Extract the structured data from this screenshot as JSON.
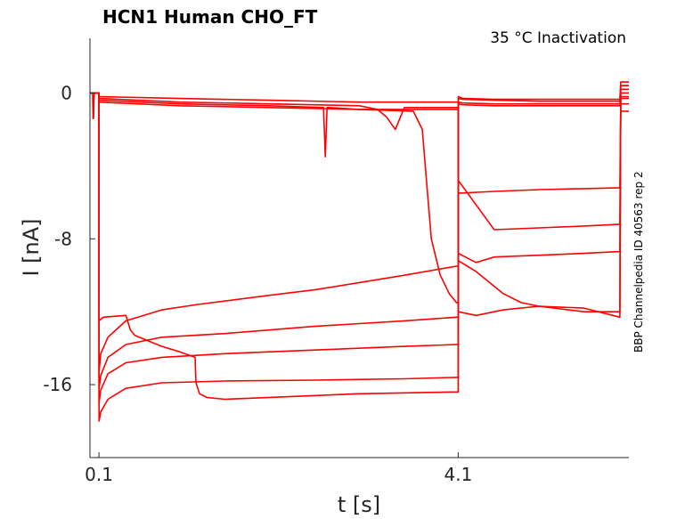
{
  "chart_data": {
    "type": "line",
    "title": "HCN1  Human  CHO_FT",
    "subtitle": "35 °C  Inactivation",
    "side_label": "BBP Channelpedia ID 40563 rep 2",
    "xlabel": "t [s]",
    "ylabel": "I [nA]",
    "xlim": [
      0.0,
      6.0
    ],
    "ylim": [
      -20.0,
      3.0
    ],
    "x_ticks": [
      {
        "value": 0.1,
        "label": "0.1"
      },
      {
        "value": 4.1,
        "label": "4.1"
      }
    ],
    "y_ticks": [
      {
        "value": 0,
        "label": "0"
      },
      {
        "value": -8,
        "label": "-8"
      },
      {
        "value": -16,
        "label": "-16"
      }
    ],
    "grid": false,
    "line_color": "#ff0000",
    "series": [
      {
        "x": [
          0.0,
          0.03,
          0.035,
          0.04,
          0.045,
          0.05,
          0.1,
          0.101,
          0.12,
          0.2,
          0.4,
          0.8,
          1.5,
          2.5,
          3.5,
          4.08,
          4.1,
          4.101,
          4.15,
          4.5,
          5.0,
          5.5,
          5.9,
          5.91,
          6.0
        ],
        "y": [
          0.0,
          0.0,
          -1.4,
          -1.4,
          -0.3,
          0.0,
          0.0,
          -18.0,
          -17.5,
          -16.8,
          -16.2,
          -15.9,
          -15.8,
          -15.75,
          -15.68,
          -15.6,
          -15.6,
          -0.2,
          -0.3,
          -0.35,
          -0.35,
          -0.35,
          -0.35,
          0.6,
          0.6
        ]
      },
      {
        "x": [
          0.0,
          0.1,
          0.101,
          0.12,
          0.2,
          0.4,
          0.8,
          1.5,
          2.5,
          3.5,
          4.08,
          4.1,
          4.101,
          4.15,
          4.5,
          5.0,
          5.5,
          5.9,
          5.91,
          6.0
        ],
        "y": [
          0.0,
          0.0,
          -17.0,
          -16.3,
          -15.4,
          -14.8,
          -14.5,
          -14.3,
          -14.1,
          -13.9,
          -13.8,
          -13.8,
          -0.3,
          -0.35,
          -0.4,
          -0.45,
          -0.45,
          -0.45,
          0.4,
          0.4
        ]
      },
      {
        "x": [
          0.0,
          0.1,
          0.101,
          0.12,
          0.2,
          0.4,
          0.8,
          1.5,
          2.5,
          3.5,
          4.08,
          4.1,
          4.101,
          4.15,
          4.5,
          5.0,
          5.5,
          5.9,
          5.91,
          6.0
        ],
        "y": [
          0.0,
          0.0,
          -16.2,
          -15.5,
          -14.5,
          -13.8,
          -13.4,
          -13.2,
          -12.8,
          -12.5,
          -12.3,
          -12.3,
          -0.5,
          -0.55,
          -0.6,
          -0.6,
          -0.6,
          -0.6,
          0.2,
          0.2
        ]
      },
      {
        "x": [
          0.0,
          0.1,
          0.101,
          0.12,
          0.2,
          0.4,
          0.8,
          1.2,
          2.0,
          2.5,
          3.0,
          3.5,
          4.08,
          4.1,
          4.101,
          4.15,
          4.5,
          5.0,
          5.5,
          5.9,
          5.91,
          6.0
        ],
        "y": [
          0.0,
          0.0,
          -15.3,
          -14.3,
          -13.4,
          -12.5,
          -11.9,
          -11.6,
          -11.1,
          -10.8,
          -10.4,
          -10.0,
          -9.5,
          -9.5,
          -0.6,
          -0.65,
          -0.7,
          -0.7,
          -0.7,
          -0.7,
          -0.2,
          -0.2
        ]
      },
      {
        "x": [
          0.0,
          0.1,
          0.101,
          0.15,
          0.4,
          0.45,
          0.5,
          0.6,
          0.8,
          1.0,
          1.17,
          1.18,
          1.22,
          1.3,
          1.5,
          2.0,
          3.0,
          4.08,
          4.1,
          4.101,
          4.5,
          5.0,
          5.5,
          5.9,
          5.91,
          6.0
        ],
        "y": [
          0.0,
          0.0,
          -12.5,
          -12.3,
          -12.2,
          -13.0,
          -13.3,
          -13.5,
          -13.9,
          -14.2,
          -14.5,
          -15.9,
          -16.5,
          -16.7,
          -16.8,
          -16.7,
          -16.5,
          -16.4,
          -16.4,
          -5.5,
          -5.4,
          -5.3,
          -5.25,
          -5.2,
          -0.6,
          -0.6
        ]
      },
      {
        "x": [
          0.0,
          0.1,
          0.101,
          1.0,
          2.0,
          3.0,
          3.6,
          3.7,
          3.75,
          3.8,
          3.9,
          4.0,
          4.08,
          4.1,
          4.101,
          4.5,
          5.0,
          5.5,
          5.9,
          5.91,
          6.0
        ],
        "y": [
          0.0,
          0.0,
          -0.5,
          -0.7,
          -0.8,
          -0.9,
          -1.0,
          -2.0,
          -5.0,
          -8.0,
          -10.0,
          -11.0,
          -11.5,
          -11.5,
          -4.8,
          -7.5,
          -7.4,
          -7.3,
          -7.2,
          -1.0,
          -1.0
        ]
      },
      {
        "x": [
          0.0,
          0.1,
          0.101,
          1.0,
          2.0,
          2.6,
          2.62,
          2.64,
          2.66,
          3.0,
          4.08,
          4.1,
          4.101,
          4.3,
          4.5,
          5.0,
          5.5,
          5.9,
          5.91,
          6.0
        ],
        "y": [
          0.0,
          0.0,
          -0.4,
          -0.6,
          -0.7,
          -0.8,
          -3.5,
          -0.8,
          -0.8,
          -0.9,
          -0.9,
          -0.9,
          -8.8,
          -9.3,
          -9.0,
          -8.9,
          -8.8,
          -8.7,
          -0.3,
          -0.3
        ]
      },
      {
        "x": [
          0.0,
          0.1,
          0.101,
          1.0,
          2.0,
          3.0,
          3.2,
          3.3,
          3.4,
          3.45,
          3.5,
          3.6,
          4.08,
          4.1,
          4.101,
          4.3,
          4.5,
          4.6,
          5.0,
          5.5,
          5.9,
          5.91,
          6.0
        ],
        "y": [
          0.0,
          0.0,
          -0.3,
          -0.5,
          -0.6,
          -0.7,
          -0.9,
          -1.3,
          -2.0,
          -1.4,
          -0.8,
          -0.8,
          -0.8,
          -0.8,
          -12.0,
          -12.2,
          -12.0,
          -11.9,
          -11.7,
          -11.8,
          -12.3,
          0.0,
          0.0
        ]
      },
      {
        "x": [
          0.0,
          0.1,
          0.101,
          1.0,
          2.0,
          3.0,
          4.08,
          4.1,
          4.101,
          4.3,
          4.6,
          4.8,
          5.0,
          5.5,
          5.9,
          5.91,
          6.0
        ],
        "y": [
          0.0,
          0.0,
          -0.2,
          -0.3,
          -0.4,
          -0.5,
          -0.5,
          -0.5,
          -9.2,
          -9.8,
          -11.0,
          -11.5,
          -11.7,
          -12.0,
          -12.0,
          0.4,
          0.4
        ]
      }
    ]
  }
}
